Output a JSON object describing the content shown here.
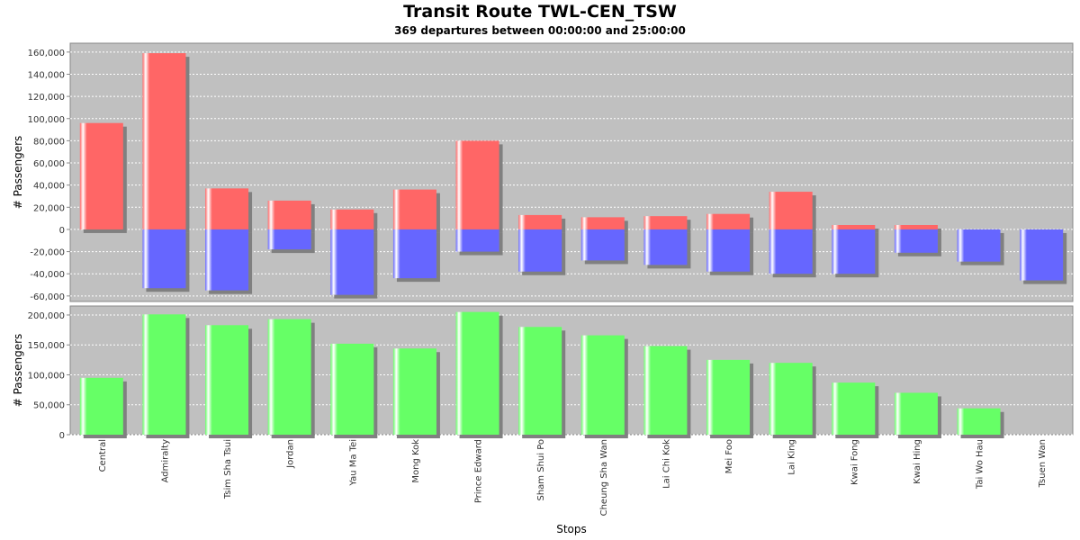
{
  "title": "Transit Route TWL-CEN_TSW",
  "subtitle": "369 departures between 00:00:00 and 25:00:00",
  "colors": {
    "boarding": "#ff6666",
    "alighting": "#6666ff",
    "load": "#66ff66",
    "plot_bg": "#c0c0c0"
  },
  "chart_data": [
    {
      "type": "bar",
      "stacked": true,
      "ylabel": "# Passengers",
      "ylim": [
        -65000,
        168000
      ],
      "yticks": [
        -60000,
        -40000,
        -20000,
        0,
        20000,
        40000,
        60000,
        80000,
        100000,
        120000,
        140000,
        160000
      ],
      "ytick_labels": [
        "-60,000",
        "-40,000",
        "-20,000",
        "0",
        "20,000",
        "40,000",
        "60,000",
        "80,000",
        "100,000",
        "120,000",
        "140,000",
        "160,000"
      ],
      "grid": true,
      "categories": [
        "Central",
        "Admiralty",
        "Tsim Sha Tsui",
        "Jordan",
        "Yau Ma Tei",
        "Mong Kok",
        "Prince Edward",
        "Sham Shui Po",
        "Cheung Sha Wan",
        "Lai Chi Kok",
        "Mei Foo",
        "Lai King",
        "Kwai Fong",
        "Kwai Hing",
        "Tai Wo Hau",
        "Tsuen Wan"
      ],
      "series": [
        {
          "values": [
            96000,
            159000,
            37000,
            26000,
            18000,
            36000,
            80000,
            13000,
            11000,
            12000,
            14000,
            34000,
            4000,
            4000,
            0,
            0
          ]
        },
        {
          "values": [
            0,
            -53000,
            -55000,
            -18000,
            -59000,
            -44000,
            -20000,
            -38000,
            -28000,
            -32000,
            -38000,
            -40000,
            -40000,
            -21000,
            -29000,
            -46000
          ]
        }
      ]
    },
    {
      "type": "bar",
      "ylabel": "# Passengers",
      "xlabel": "Stops",
      "ylim": [
        0,
        215000
      ],
      "yticks": [
        0,
        50000,
        100000,
        150000,
        200000
      ],
      "ytick_labels": [
        "0",
        "50,000",
        "100,000",
        "150,000",
        "200,000"
      ],
      "grid": true,
      "categories": [
        "Central",
        "Admiralty",
        "Tsim Sha Tsui",
        "Jordan",
        "Yau Ma Tei",
        "Mong Kok",
        "Prince Edward",
        "Sham Shui Po",
        "Cheung Sha Wan",
        "Lai Chi Kok",
        "Mei Foo",
        "Lai King",
        "Kwai Fong",
        "Kwai Hing",
        "Tai Wo Hau",
        "Tsuen Wan"
      ],
      "series": [
        {
          "values": [
            95000,
            201000,
            183000,
            193000,
            152000,
            144000,
            205000,
            180000,
            166000,
            148000,
            125000,
            120000,
            87000,
            70000,
            44000,
            0
          ]
        }
      ]
    }
  ]
}
